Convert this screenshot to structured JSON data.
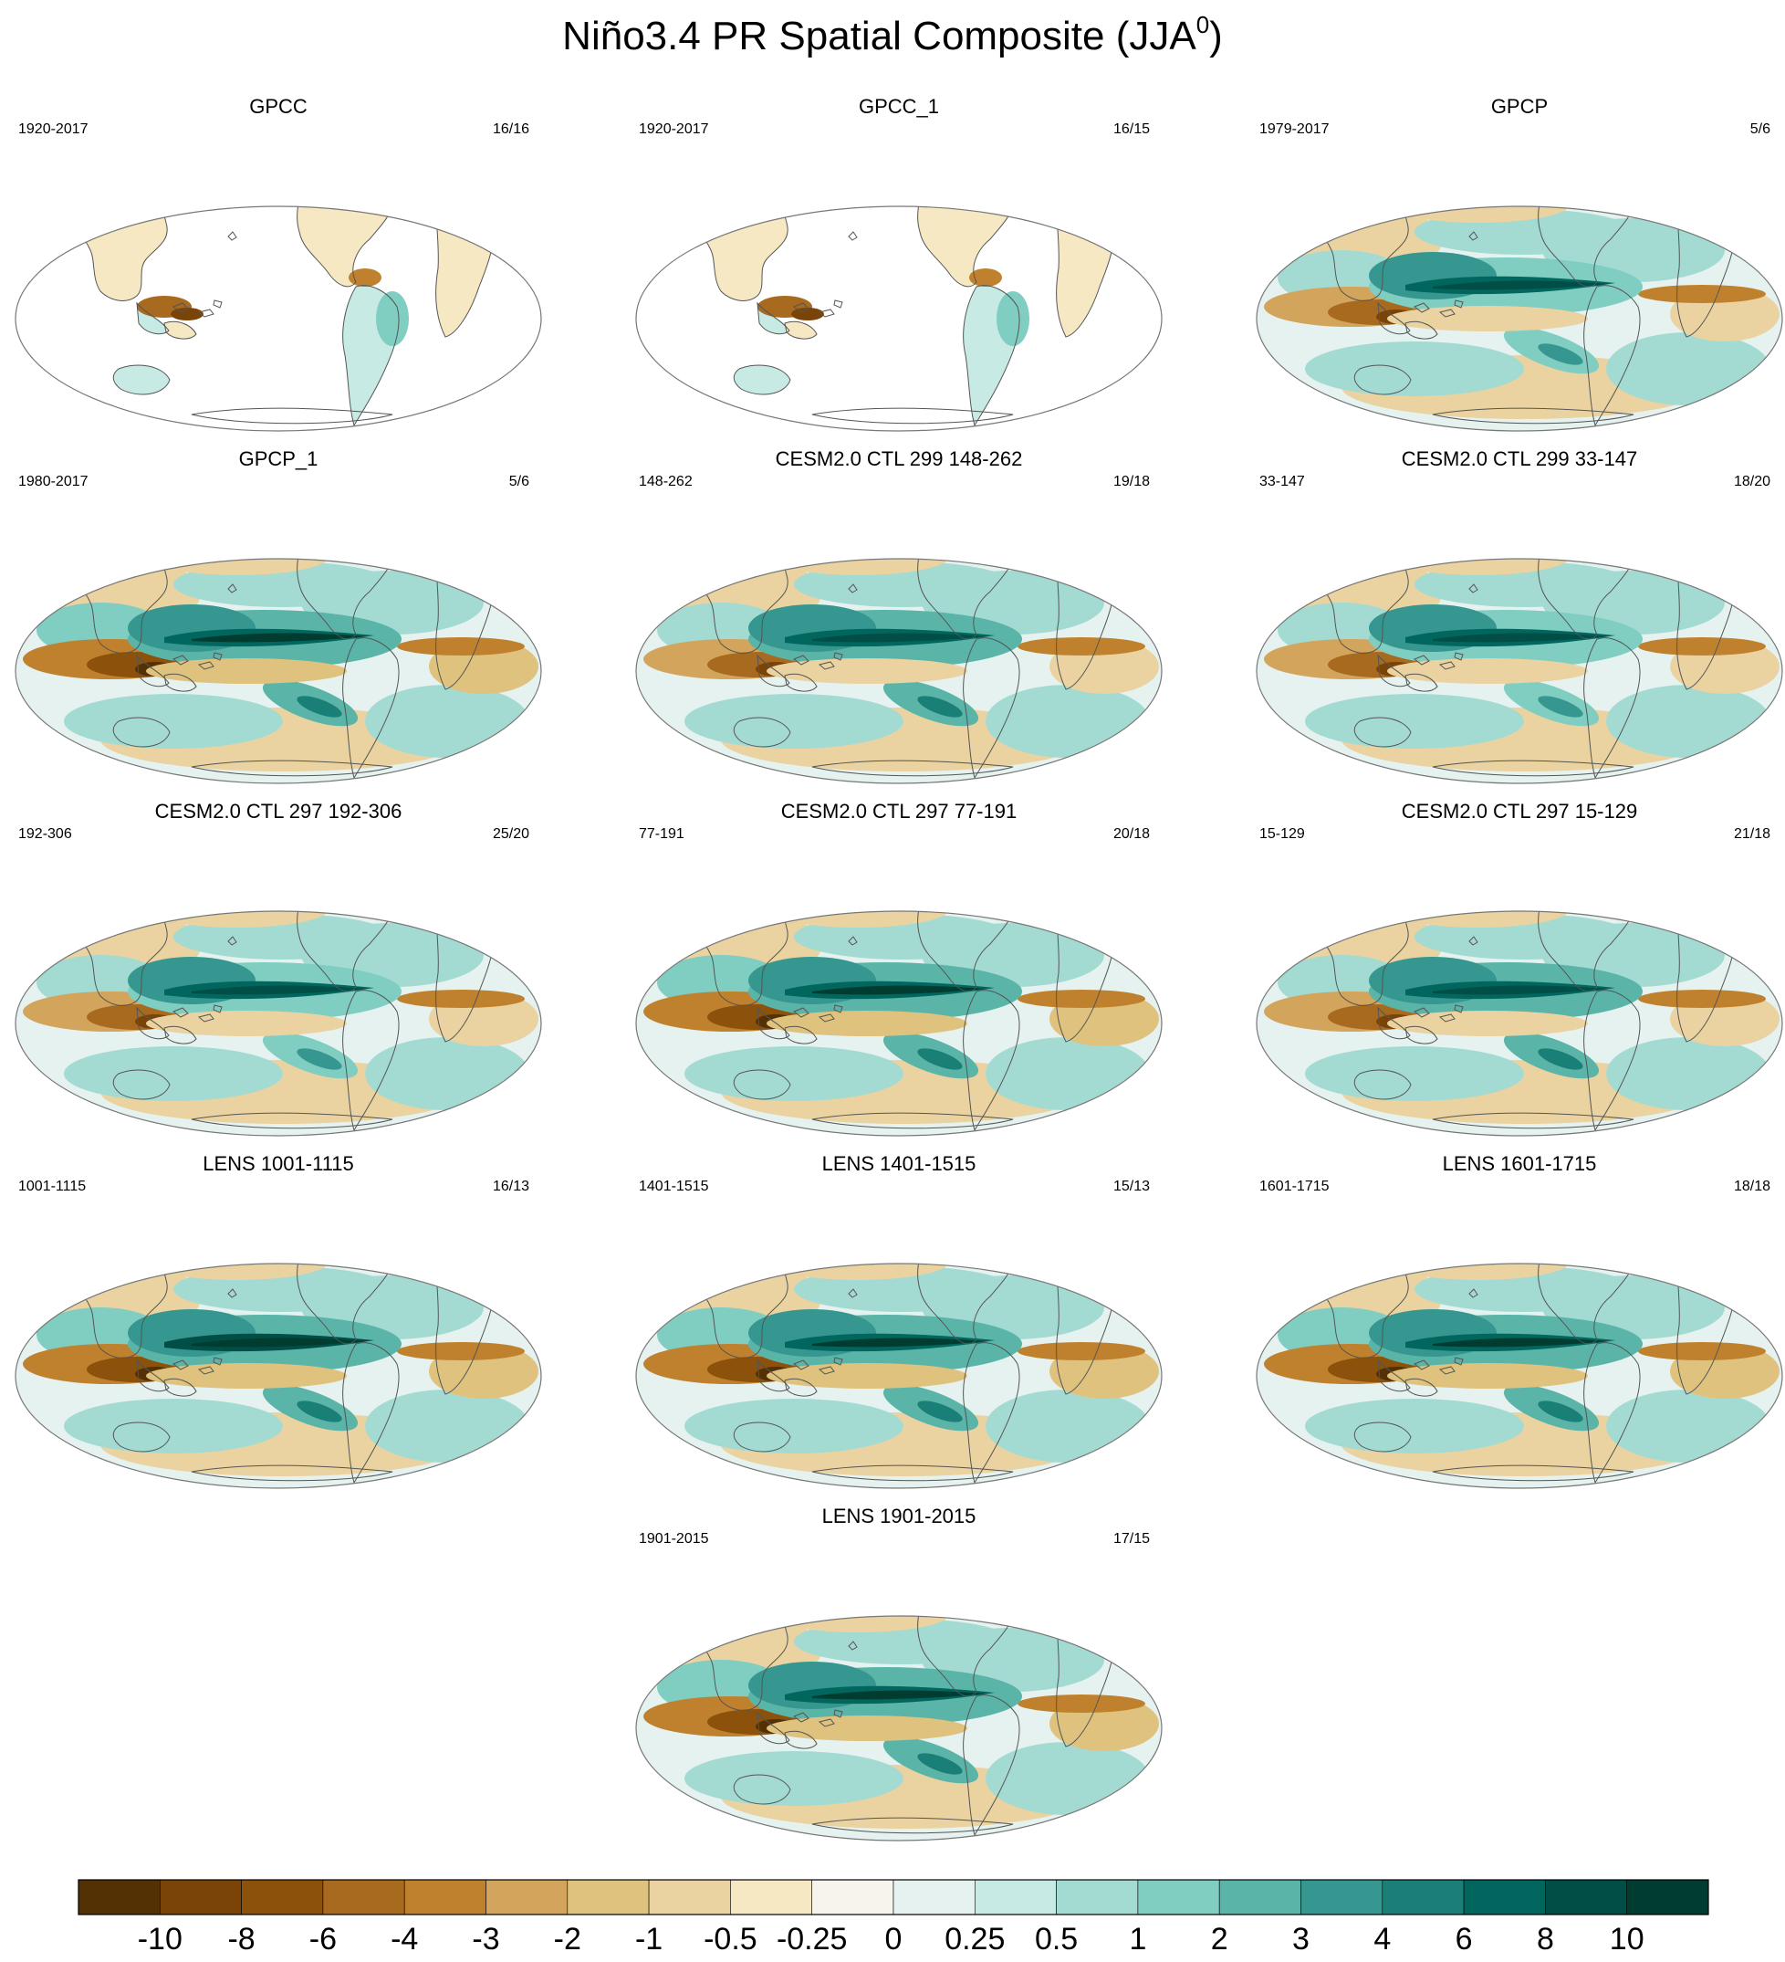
{
  "figure": {
    "title_main": "Niño3.4 PR Spatial Composite (JJA",
    "title_sup": "0",
    "title_close": ")"
  },
  "panels": [
    {
      "title": "GPCC",
      "years": "1920-2017",
      "count": "16/16",
      "pattern": "gauge",
      "amp": 0.55
    },
    {
      "title": "GPCC_1",
      "years": "1920-2017",
      "count": "16/15",
      "pattern": "gauge",
      "amp": 0.55
    },
    {
      "title": "GPCP",
      "years": "1979-2017",
      "count": "5/6",
      "pattern": "full",
      "amp": 0.85
    },
    {
      "title": "GPCP_1",
      "years": "1980-2017",
      "count": "5/6",
      "pattern": "full",
      "amp": 0.95
    },
    {
      "title": "CESM2.0 CTL 299 148-262",
      "years": "148-262",
      "count": "19/18",
      "pattern": "full",
      "amp": 0.9
    },
    {
      "title": "CESM2.0 CTL 299 33-147",
      "years": "33-147",
      "count": "18/20",
      "pattern": "full",
      "amp": 0.85
    },
    {
      "title": "CESM2.0 CTL 297 192-306",
      "years": "192-306",
      "count": "25/20",
      "pattern": "full",
      "amp": 0.85
    },
    {
      "title": "CESM2.0 CTL 297 77-191",
      "years": "77-191",
      "count": "20/18",
      "pattern": "full",
      "amp": 0.95
    },
    {
      "title": "CESM2.0 CTL 297 15-129",
      "years": "15-129",
      "count": "21/18",
      "pattern": "full",
      "amp": 0.9
    },
    {
      "title": "LENS 1001-1115",
      "years": "1001-1115",
      "count": "16/13",
      "pattern": "full",
      "amp": 1.0
    },
    {
      "title": "LENS 1401-1515",
      "years": "1401-1515",
      "count": "15/13",
      "pattern": "full",
      "amp": 0.95
    },
    {
      "title": "LENS 1601-1715",
      "years": "1601-1715",
      "count": "18/18",
      "pattern": "full",
      "amp": 0.95
    },
    {
      "title": "LENS 1901-2015",
      "years": "1901-2015",
      "count": "17/15",
      "pattern": "full",
      "amp": 0.95
    }
  ],
  "colorbar": {
    "labels": [
      "-10",
      "-8",
      "-6",
      "-4",
      "-3",
      "-2",
      "-1",
      "-0.5",
      "-0.25",
      "0",
      "0.25",
      "0.5",
      "1",
      "2",
      "3",
      "4",
      "6",
      "8",
      "10"
    ],
    "colors": [
      "#543005",
      "#7a4409",
      "#8c510a",
      "#a86a1f",
      "#bf812d",
      "#d2a45c",
      "#dfc27d",
      "#ead3a0",
      "#f6e8c3",
      "#f7f4ee",
      "#e5f2f0",
      "#c7eae5",
      "#a3dbd3",
      "#80cdc1",
      "#5ab4a8",
      "#35978f",
      "#1a7f76",
      "#01665e",
      "#014e47",
      "#003c30"
    ]
  }
}
